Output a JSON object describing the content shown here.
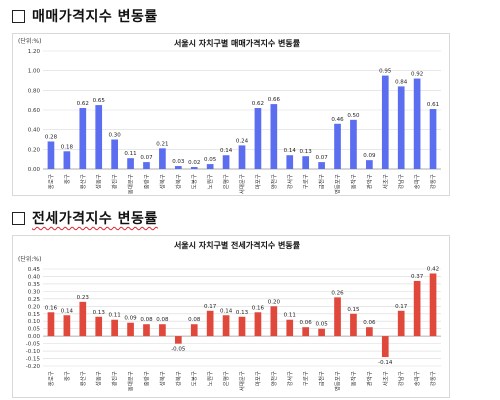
{
  "headings": {
    "sale": "매매가격지수 변동률",
    "jeonse": "전세가격지수 변동률"
  },
  "colors": {
    "sale_bar": "#5b6ef0",
    "jeonse_bar": "#e0483c",
    "grid": "#d9d9d9",
    "axis_text": "#333333"
  },
  "chart_data": [
    {
      "type": "bar",
      "title": "서울시 자치구별 매매가격지수 변동률",
      "ylabel": "(단위:%)",
      "xlabel": "",
      "ylim": [
        0,
        1.2
      ],
      "yticks": [
        "0.00",
        "0.20",
        "0.40",
        "0.60",
        "0.80",
        "1.00",
        "1.20"
      ],
      "grid": true,
      "categories": [
        "종로구",
        "중구",
        "용산구",
        "성동구",
        "광진구",
        "동대문구",
        "중랑구",
        "성북구",
        "강북구",
        "도봉구",
        "노원구",
        "은평구",
        "서대문구",
        "마포구",
        "양천구",
        "강서구",
        "구로구",
        "금천구",
        "영등포구",
        "동작구",
        "관악구",
        "서초구",
        "강남구",
        "송파구",
        "강동구"
      ],
      "values": [
        0.28,
        0.18,
        0.62,
        0.65,
        0.3,
        0.11,
        0.07,
        0.21,
        0.03,
        0.02,
        0.05,
        0.14,
        0.24,
        0.62,
        0.66,
        0.14,
        0.13,
        0.07,
        0.46,
        0.5,
        0.09,
        0.95,
        0.84,
        0.92,
        0.61
      ],
      "labels": [
        "0.28",
        "0.18",
        "0.62",
        "0.65",
        "0.30",
        "0.11",
        "0.07",
        "0.21",
        "0.03",
        "0.02",
        "0.05",
        "0.14",
        "0.24",
        "0.62",
        "0.66",
        "0.14",
        "0.13",
        "0.07",
        "0.46",
        "0.50",
        "0.09",
        "0.95",
        "0.84",
        "0.92",
        "0.61"
      ]
    },
    {
      "type": "bar",
      "title": "서울시 자치구별 전세가격지수 변동률",
      "ylabel": "(단위:%)",
      "xlabel": "",
      "ylim": [
        -0.2,
        0.45
      ],
      "yticks": [
        "-0.20",
        "-0.15",
        "-0.10",
        "-0.05",
        "0.00",
        "0.05",
        "0.10",
        "0.15",
        "0.20",
        "0.25",
        "0.30",
        "0.35",
        "0.40",
        "0.45"
      ],
      "grid": true,
      "categories": [
        "종로구",
        "중구",
        "용산구",
        "성동구",
        "광진구",
        "동대문구",
        "중랑구",
        "성북구",
        "강북구",
        "도봉구",
        "노원구",
        "은평구",
        "서대문구",
        "마포구",
        "양천구",
        "강서구",
        "구로구",
        "금천구",
        "영등포구",
        "동작구",
        "관악구",
        "서초구",
        "강남구",
        "송파구",
        "강동구"
      ],
      "values": [
        0.16,
        0.14,
        0.23,
        0.13,
        0.11,
        0.09,
        0.08,
        0.08,
        -0.05,
        0.08,
        0.17,
        0.14,
        0.13,
        0.16,
        0.2,
        0.11,
        0.06,
        0.05,
        0.26,
        0.15,
        0.06,
        -0.14,
        0.17,
        0.37,
        0.42
      ],
      "labels": [
        "0.16",
        "0.14",
        "0.23",
        "0.13",
        "0.11",
        "0.09",
        "0.08",
        "0.08",
        "-0.05",
        "0.08",
        "0.17",
        "0.14",
        "0.13",
        "0.16",
        "0.20",
        "0.11",
        "0.06",
        "0.05",
        "0.26",
        "0.15",
        "0.06",
        "-0.14",
        "0.17",
        "0.37",
        "0.42"
      ]
    }
  ]
}
